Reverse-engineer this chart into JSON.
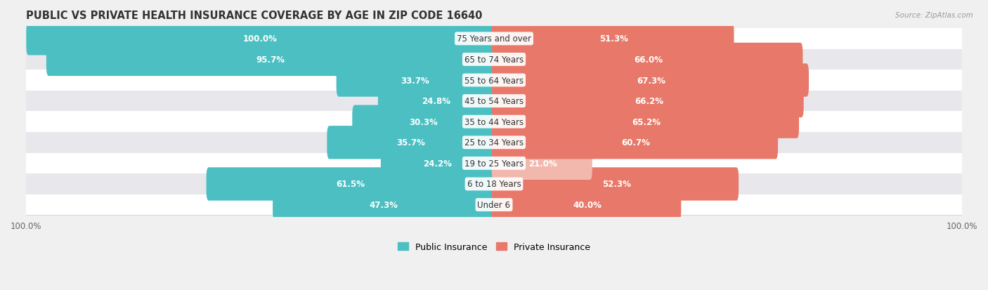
{
  "title": "PUBLIC VS PRIVATE HEALTH INSURANCE COVERAGE BY AGE IN ZIP CODE 16640",
  "source": "Source: ZipAtlas.com",
  "categories": [
    "Under 6",
    "6 to 18 Years",
    "19 to 25 Years",
    "25 to 34 Years",
    "35 to 44 Years",
    "45 to 54 Years",
    "55 to 64 Years",
    "65 to 74 Years",
    "75 Years and over"
  ],
  "public_values": [
    47.3,
    61.5,
    24.2,
    35.7,
    30.3,
    24.8,
    33.7,
    95.7,
    100.0
  ],
  "private_values": [
    40.0,
    52.3,
    21.0,
    60.7,
    65.2,
    66.2,
    67.3,
    66.0,
    51.3
  ],
  "public_color": "#4bbfc2",
  "private_colors": [
    "#e8796a",
    "#e8796a",
    "#f2b8ad",
    "#e8796a",
    "#e8796a",
    "#e8796a",
    "#e8796a",
    "#e8796a",
    "#e8796a"
  ],
  "bg_color": "#f0f0f0",
  "row_colors": [
    "#ffffff",
    "#e8e8ec",
    "#ffffff",
    "#e8e8ec",
    "#ffffff",
    "#e8e8ec",
    "#ffffff",
    "#e8e8ec",
    "#ffffff"
  ],
  "max_value": 100.0,
  "label_fontsize": 8.5,
  "title_fontsize": 10.5,
  "legend_fontsize": 9,
  "pub_label_threshold": 18,
  "priv_label_threshold": 18
}
